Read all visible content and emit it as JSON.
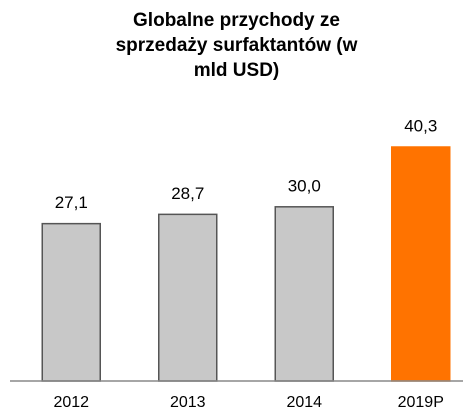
{
  "chart_data": {
    "type": "bar",
    "title": "Globalne przychody ze sprzedaży surfaktantów (w mld USD)",
    "categories": [
      "2012",
      "2013",
      "2014",
      "2019P"
    ],
    "values": [
      27.1,
      28.7,
      30.0,
      40.3
    ],
    "value_labels": [
      "27,1",
      "28,7",
      "30,0",
      "40,3"
    ],
    "colors": [
      "#c8c8c8",
      "#c8c8c8",
      "#c8c8c8",
      "#ff7300"
    ]
  }
}
